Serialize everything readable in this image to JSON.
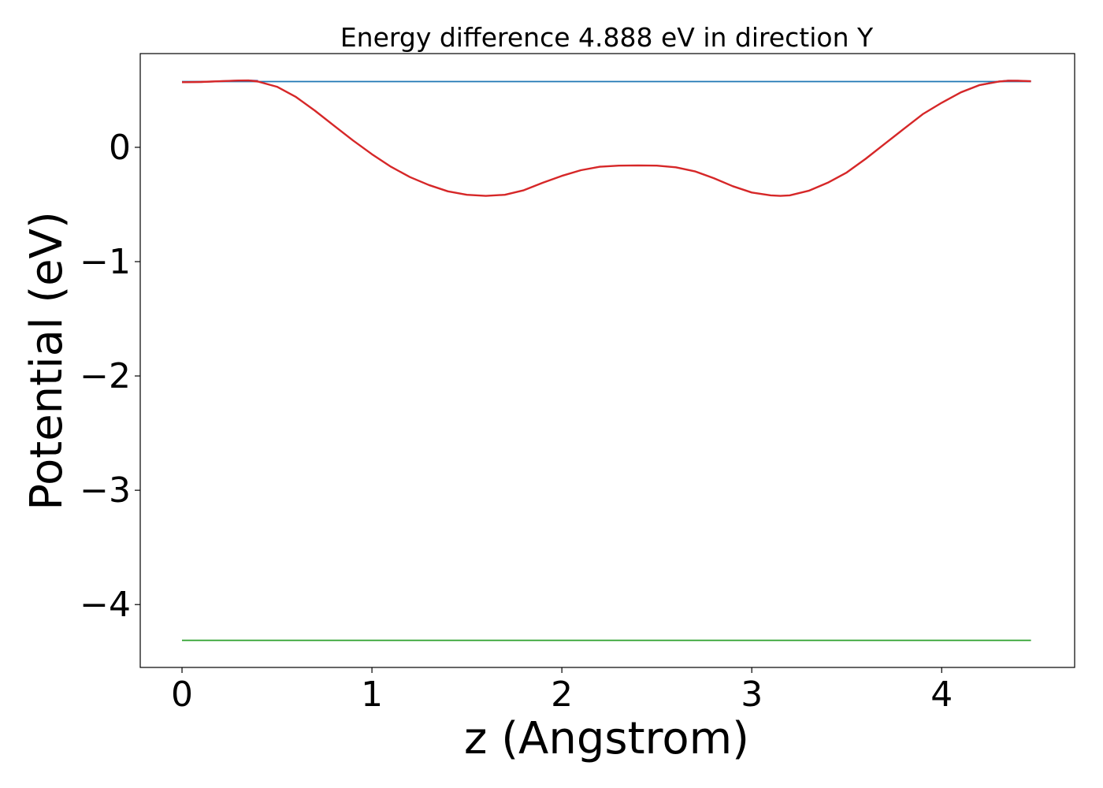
{
  "chart_data": {
    "type": "line",
    "title": "Energy difference 4.888 eV in direction Y",
    "xlabel": "z (Angstrom)",
    "ylabel": "Potential (eV)",
    "xlim": [
      -0.22,
      4.7
    ],
    "ylim": [
      -4.55,
      0.82
    ],
    "xticks": [
      {
        "value": 0,
        "label": "0"
      },
      {
        "value": 1,
        "label": "1"
      },
      {
        "value": 2,
        "label": "2"
      },
      {
        "value": 3,
        "label": "3"
      },
      {
        "value": 4,
        "label": "4"
      }
    ],
    "yticks": [
      {
        "value": 0,
        "label": "0"
      },
      {
        "value": -1,
        "label": "−1"
      },
      {
        "value": -2,
        "label": "−2"
      },
      {
        "value": -3,
        "label": "−3"
      },
      {
        "value": -4,
        "label": "−4"
      }
    ],
    "grid": false,
    "legend": "none",
    "series": [
      {
        "color": "#1f77b4",
        "x": [
          0,
          4.47
        ],
        "y": [
          0.575,
          0.575
        ]
      },
      {
        "color": "#2ca02c",
        "x": [
          0,
          4.47
        ],
        "y": [
          -4.313,
          -4.313
        ]
      },
      {
        "color": "#7b68b0",
        "x": [
          0.0,
          0.1,
          0.2,
          0.3,
          0.35,
          0.4,
          4.1,
          4.2,
          4.3,
          4.35,
          4.4,
          4.47
        ],
        "y": [
          0.57,
          0.572,
          0.578,
          0.584,
          0.585,
          0.582,
          0.48,
          0.545,
          0.575,
          0.583,
          0.582,
          0.578
        ]
      },
      {
        "color": "#d62728",
        "x": [
          0.0,
          0.1,
          0.2,
          0.3,
          0.35,
          0.4,
          0.5,
          0.6,
          0.7,
          0.8,
          0.9,
          1.0,
          1.1,
          1.2,
          1.3,
          1.4,
          1.5,
          1.6,
          1.7,
          1.8,
          1.9,
          2.0,
          2.1,
          2.2,
          2.3,
          2.4,
          2.5,
          2.6,
          2.7,
          2.8,
          2.9,
          3.0,
          3.1,
          3.15,
          3.2,
          3.3,
          3.4,
          3.5,
          3.6,
          3.7,
          3.8,
          3.9,
          4.0,
          4.1,
          4.2,
          4.3,
          4.35,
          4.4,
          4.47
        ],
        "y": [
          0.57,
          0.572,
          0.578,
          0.584,
          0.585,
          0.575,
          0.53,
          0.44,
          0.32,
          0.19,
          0.06,
          -0.06,
          -0.17,
          -0.26,
          -0.33,
          -0.385,
          -0.415,
          -0.425,
          -0.415,
          -0.375,
          -0.31,
          -0.25,
          -0.2,
          -0.17,
          -0.16,
          -0.158,
          -0.16,
          -0.175,
          -0.21,
          -0.27,
          -0.34,
          -0.395,
          -0.42,
          -0.425,
          -0.42,
          -0.38,
          -0.31,
          -0.22,
          -0.1,
          0.03,
          0.16,
          0.29,
          0.39,
          0.48,
          0.545,
          0.575,
          0.583,
          0.582,
          0.578
        ]
      }
    ]
  }
}
